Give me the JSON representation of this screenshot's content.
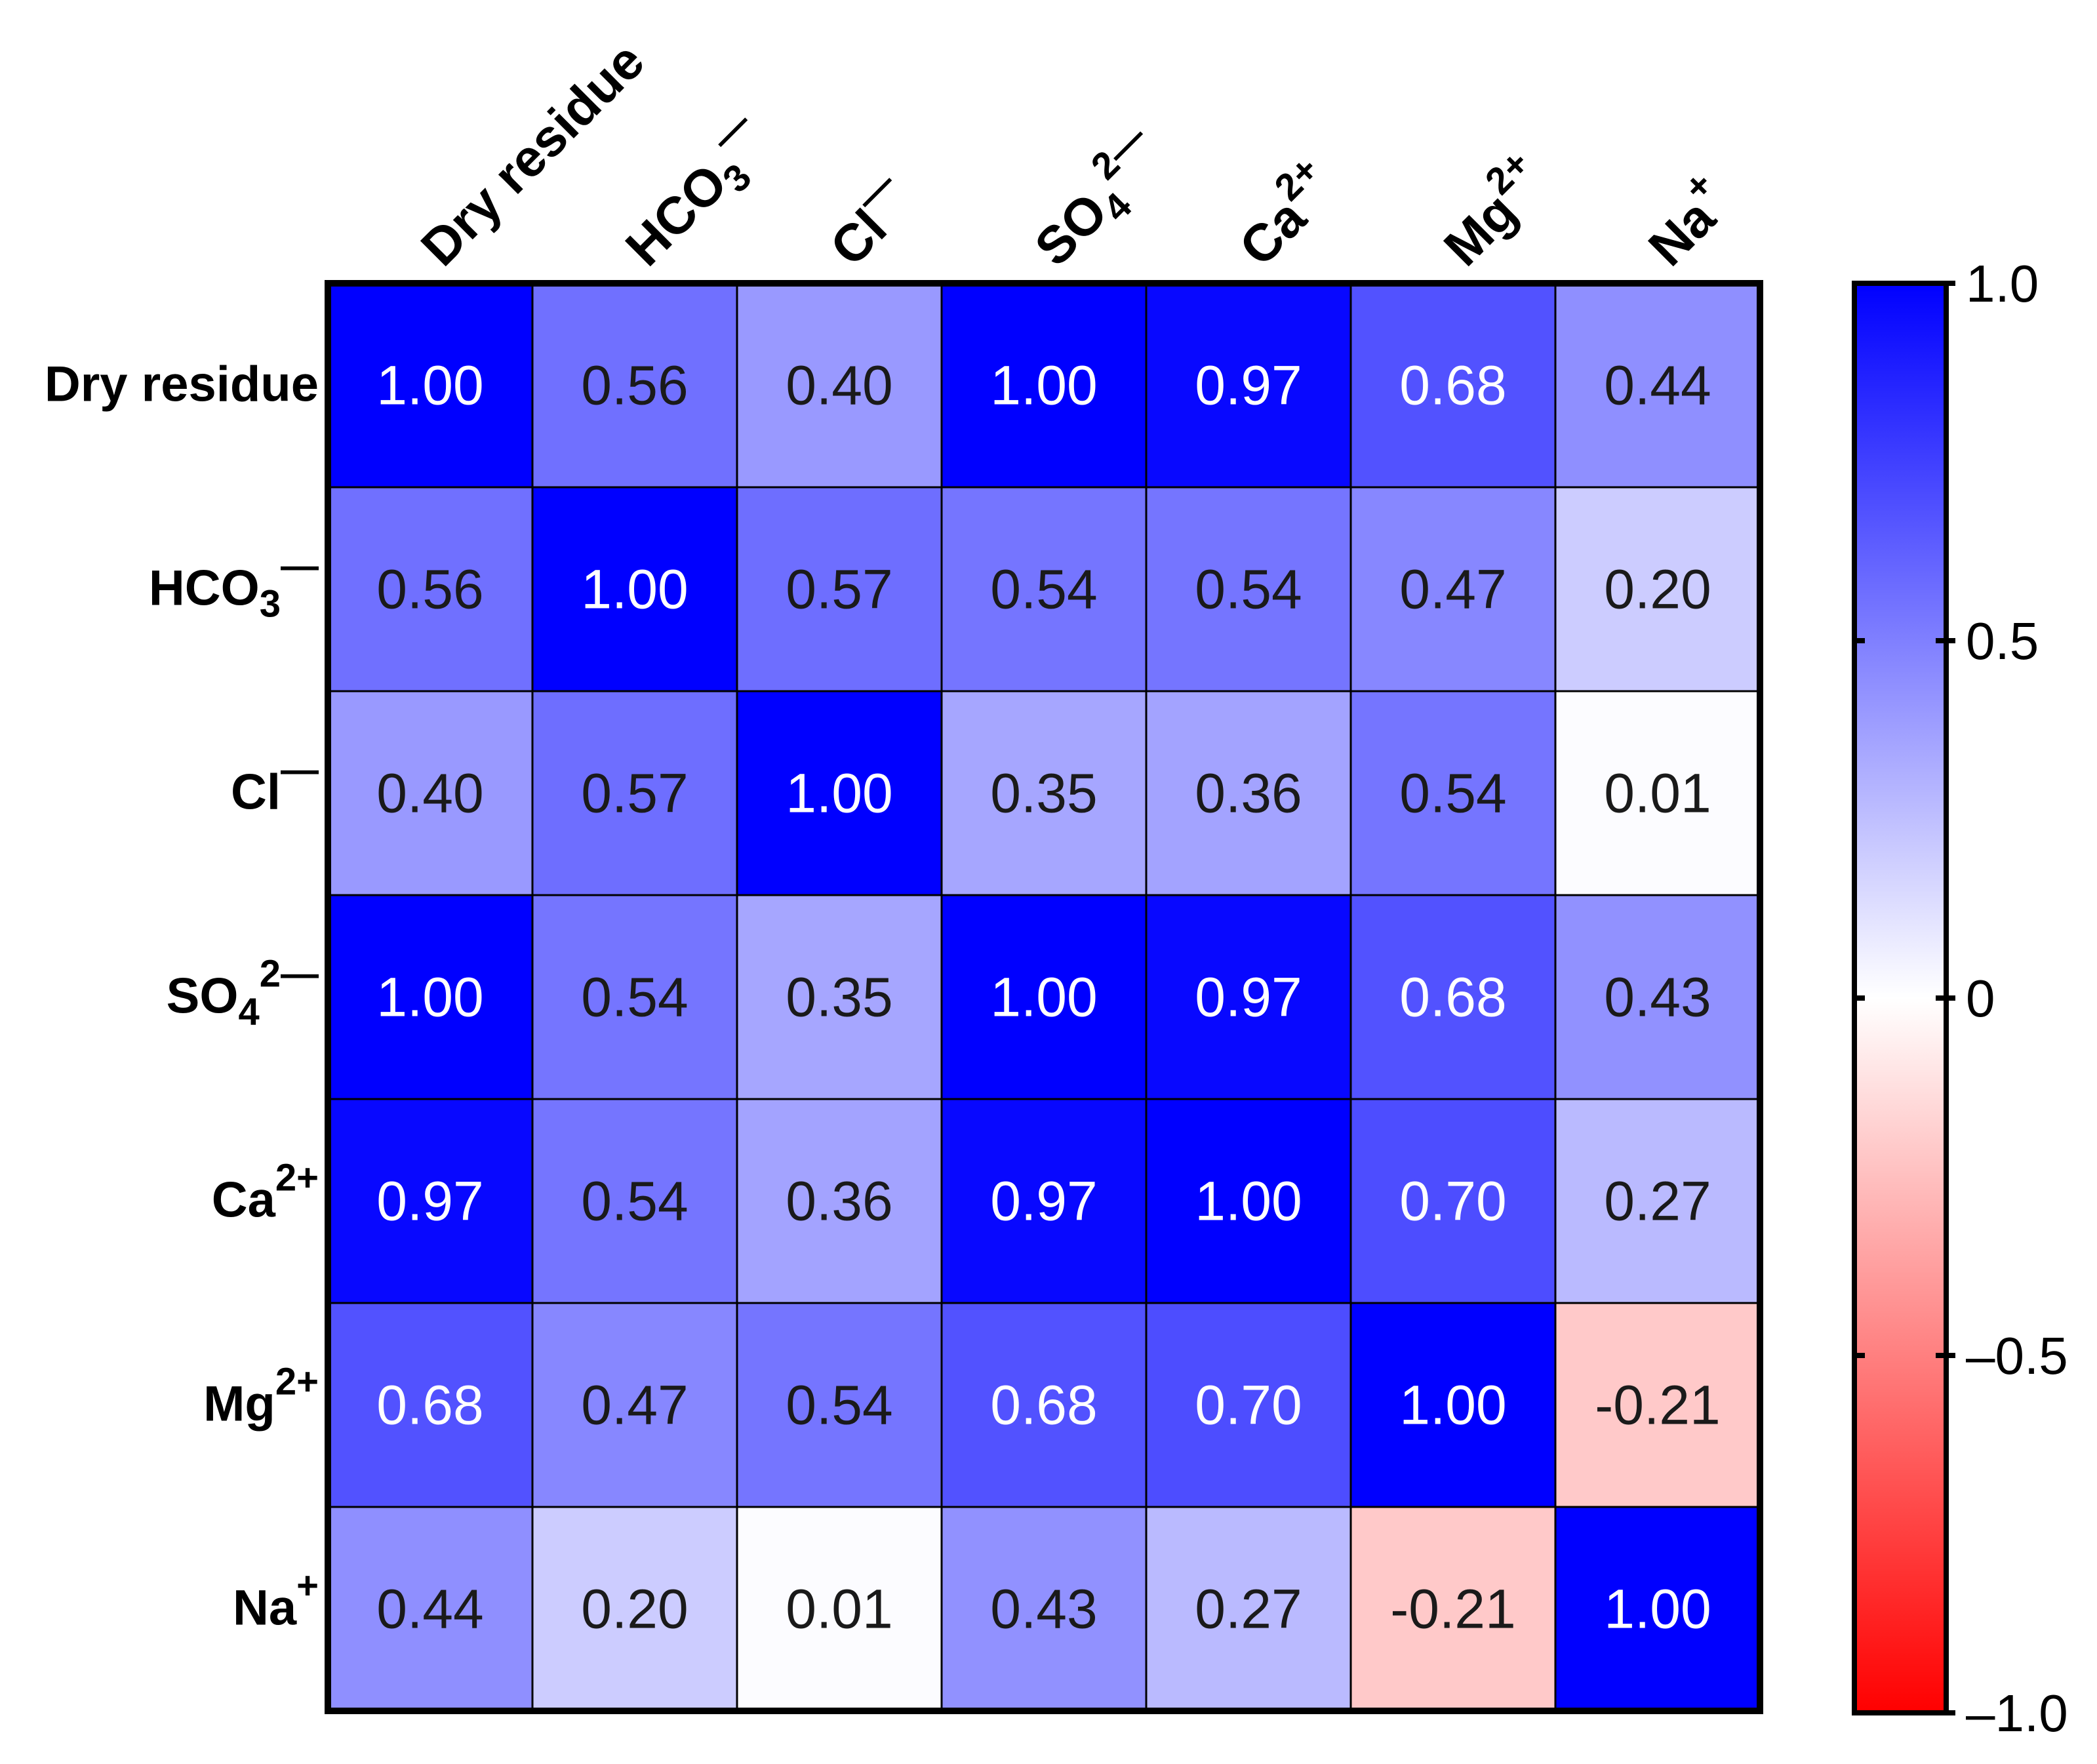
{
  "chart_data": {
    "type": "heatmap",
    "title": "",
    "rows": [
      {
        "base": "Dry residue",
        "sub": "",
        "sup": ""
      },
      {
        "base": "HCO",
        "sub": "3",
        "sup": "—"
      },
      {
        "base": "Cl",
        "sub": "",
        "sup": "—"
      },
      {
        "base": "SO",
        "sub": "4",
        "sup": "2—"
      },
      {
        "base": "Ca",
        "sub": "",
        "sup": "2+"
      },
      {
        "base": "Mg",
        "sub": "",
        "sup": "2+"
      },
      {
        "base": "Na",
        "sub": "",
        "sup": "+"
      }
    ],
    "columns": [
      {
        "base": "Dry residue",
        "sub": "",
        "sup": ""
      },
      {
        "base": "HCO",
        "sub": "3",
        "sup": "—"
      },
      {
        "base": "Cl",
        "sub": "",
        "sup": "—"
      },
      {
        "base": "SO",
        "sub": "4",
        "sup": "2—"
      },
      {
        "base": "Ca",
        "sub": "",
        "sup": "2+"
      },
      {
        "base": "Mg",
        "sub": "",
        "sup": "2+"
      },
      {
        "base": "Na",
        "sub": "",
        "sup": "+"
      }
    ],
    "values": [
      [
        1.0,
        0.56,
        0.4,
        1.0,
        0.97,
        0.68,
        0.44
      ],
      [
        0.56,
        1.0,
        0.57,
        0.54,
        0.54,
        0.47,
        0.2
      ],
      [
        0.4,
        0.57,
        1.0,
        0.35,
        0.36,
        0.54,
        0.01
      ],
      [
        1.0,
        0.54,
        0.35,
        1.0,
        0.97,
        0.68,
        0.43
      ],
      [
        0.97,
        0.54,
        0.36,
        0.97,
        1.0,
        0.7,
        0.27
      ],
      [
        0.68,
        0.47,
        0.54,
        0.68,
        0.7,
        1.0,
        -0.21
      ],
      [
        0.44,
        0.2,
        0.01,
        0.43,
        0.27,
        -0.21,
        1.0
      ]
    ],
    "value_labels": [
      [
        "1.00",
        "0.56",
        "0.40",
        "1.00",
        "0.97",
        "0.68",
        "0.44"
      ],
      [
        "0.56",
        "1.00",
        "0.57",
        "0.54",
        "0.54",
        "0.47",
        "0.20"
      ],
      [
        "0.40",
        "0.57",
        "1.00",
        "0.35",
        "0.36",
        "0.54",
        "0.01"
      ],
      [
        "1.00",
        "0.54",
        "0.35",
        "1.00",
        "0.97",
        "0.68",
        "0.43"
      ],
      [
        "0.97",
        "0.54",
        "0.36",
        "0.97",
        "1.00",
        "0.70",
        "0.27"
      ],
      [
        "0.68",
        "0.47",
        "0.54",
        "0.68",
        "0.70",
        "1.00",
        "-0.21"
      ],
      [
        "0.44",
        "0.20",
        "0.01",
        "0.43",
        "0.27",
        "-0.21",
        "1.00"
      ]
    ],
    "colorscale": {
      "min": -1.0,
      "max": 1.0,
      "low_color": "#ff0000",
      "mid_color": "#ffffff",
      "high_color": "#0000ff"
    },
    "colorbar": {
      "ticks": [
        1.0,
        0.5,
        0,
        -0.5,
        -1.0
      ],
      "tick_labels": [
        "1.0",
        "0.5",
        "0",
        "–0.5",
        "–1.0"
      ]
    }
  }
}
